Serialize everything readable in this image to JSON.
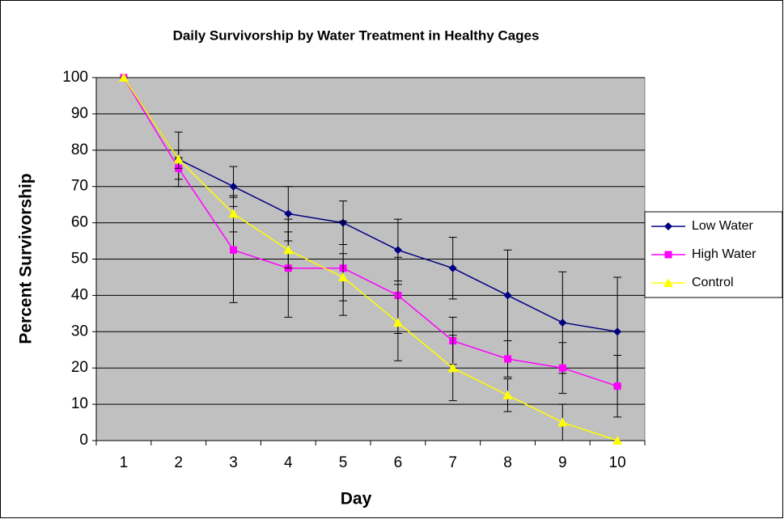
{
  "chart_data": {
    "type": "line",
    "title": "Daily Survivorship by Water Treatment in Healthy Cages",
    "xlabel": "Day",
    "ylabel": "Percent Survivorship",
    "categories": [
      "1",
      "2",
      "3",
      "4",
      "5",
      "6",
      "7",
      "8",
      "9",
      "10"
    ],
    "series": [
      {
        "name": "Low Water",
        "color": "#000080",
        "marker": "diamond",
        "values": [
          100,
          77.5,
          70,
          62.5,
          60,
          52.5,
          47.5,
          40,
          32.5,
          30
        ],
        "errors": [
          0,
          7.5,
          5.5,
          7.5,
          6,
          8.5,
          8.5,
          12.5,
          14,
          15
        ]
      },
      {
        "name": "High Water",
        "color": "#ff00ff",
        "marker": "square",
        "values": [
          100,
          75,
          52.5,
          47.5,
          47.5,
          40,
          27.5,
          22.5,
          20,
          15
        ],
        "errors": [
          0,
          3,
          14.5,
          13.5,
          13,
          10.5,
          6.5,
          5,
          7,
          8.5
        ]
      },
      {
        "name": "Control",
        "color": "#ffff00",
        "marker": "triangle",
        "values": [
          100,
          77.5,
          62.5,
          52.5,
          45,
          32.5,
          20,
          12.5,
          5,
          0
        ],
        "errors": [
          0,
          2.5,
          5,
          5,
          6.5,
          10.5,
          9,
          4.5,
          5,
          0
        ]
      }
    ],
    "ylim": [
      0,
      100
    ],
    "yticks": [
      0,
      10,
      20,
      30,
      40,
      50,
      60,
      70,
      80,
      90,
      100
    ],
    "grid": true,
    "legend": "right"
  }
}
